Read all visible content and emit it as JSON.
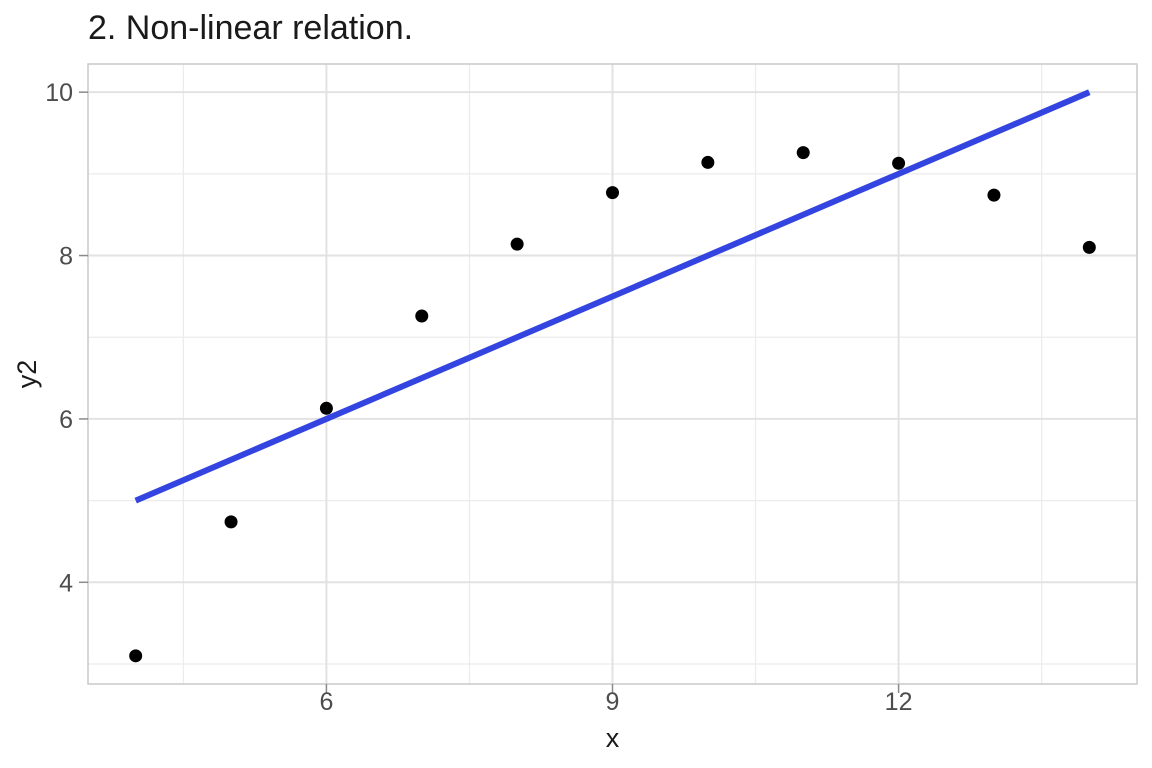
{
  "chart_data": {
    "type": "scatter",
    "title": "2. Non-linear relation.",
    "xlabel": "x",
    "ylabel": "y2",
    "x_ticks": [
      6,
      9,
      12
    ],
    "y_ticks": [
      4,
      6,
      8,
      10
    ],
    "x_minor_gridlines": [
      4.5,
      7.5,
      10.5,
      13.5
    ],
    "y_minor_gridlines": [
      3,
      5,
      7,
      9
    ],
    "xlim": [
      3.5,
      14.5
    ],
    "ylim": [
      2.755,
      10.345
    ],
    "grid": true,
    "legend_position": "none",
    "points": [
      {
        "x": 4,
        "y": 3.1
      },
      {
        "x": 5,
        "y": 4.74
      },
      {
        "x": 6,
        "y": 6.13
      },
      {
        "x": 7,
        "y": 7.26
      },
      {
        "x": 8,
        "y": 8.14
      },
      {
        "x": 9,
        "y": 8.77
      },
      {
        "x": 10,
        "y": 9.14
      },
      {
        "x": 11,
        "y": 9.26
      },
      {
        "x": 12,
        "y": 9.13
      },
      {
        "x": 13,
        "y": 8.74
      },
      {
        "x": 14,
        "y": 8.1
      }
    ],
    "trend_line": {
      "x1": 4,
      "y1": 5,
      "x2": 14,
      "y2": 10
    },
    "colors": {
      "point": "#000000",
      "line": "#3344e0",
      "grid_major": "#e2e2e2",
      "grid_minor": "#ececec",
      "panel_border": "#c9c9c9",
      "tick_mark": "#8a8a8a",
      "tick_label": "#4d4d4d",
      "title": "#1a1a1a",
      "axis_label": "#1a1a1a",
      "background": "#ffffff"
    }
  }
}
